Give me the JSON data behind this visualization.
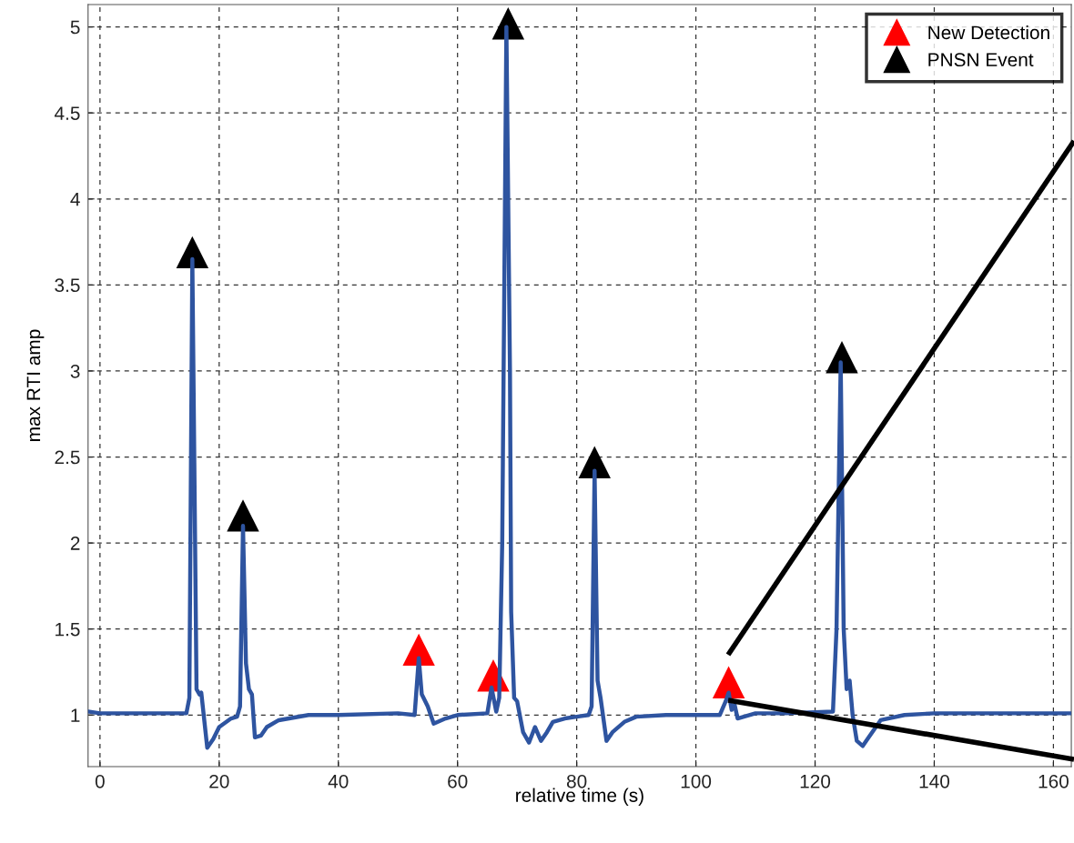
{
  "chart_data": {
    "type": "line",
    "xlabel": "relative time (s)",
    "ylabel": "max RTI amp",
    "xlim": [
      -2,
      163
    ],
    "ylim": [
      0.7,
      5.13
    ],
    "xticks": [
      0,
      20,
      40,
      60,
      80,
      100,
      120,
      140,
      160
    ],
    "yticks": [
      1,
      1.5,
      2,
      2.5,
      3,
      3.5,
      4,
      4.5,
      5
    ],
    "grid": true,
    "legend": "top right",
    "line_style": "solid",
    "series": [
      {
        "color": "#2e54a0",
        "marker": "none",
        "x": [
          -2,
          0,
          5,
          10,
          14.5,
          15,
          15.5,
          16.2,
          16.7,
          17,
          18,
          19,
          20,
          22,
          23,
          23.5,
          24,
          24.5,
          25,
          25.5,
          26,
          27,
          28,
          30,
          35,
          40,
          50,
          52.8,
          53.5,
          54,
          55,
          56,
          58,
          60,
          65,
          65.7,
          66.5,
          67,
          67.5,
          68.2,
          68.8,
          69,
          69.5,
          70,
          71,
          72,
          73,
          74,
          75,
          76,
          78,
          80,
          82,
          82.5,
          83,
          83.5,
          84,
          85,
          86,
          88,
          90,
          95,
          100,
          104,
          105,
          105.5,
          106,
          106.5,
          107,
          110,
          115,
          123,
          123.6,
          124.3,
          124.8,
          125.3,
          125.8,
          126.3,
          127,
          128,
          129,
          131,
          135,
          140,
          150,
          160,
          163
        ],
        "values": [
          1.02,
          1.01,
          1.01,
          1.01,
          1.01,
          1.1,
          3.65,
          1.15,
          1.12,
          1.13,
          0.81,
          0.86,
          0.93,
          0.98,
          0.99,
          1.05,
          2.1,
          1.3,
          1.15,
          1.12,
          0.87,
          0.88,
          0.93,
          0.97,
          1.0,
          1.0,
          1.01,
          1.0,
          1.33,
          1.12,
          1.05,
          0.95,
          0.98,
          1.0,
          1.01,
          1.16,
          1.02,
          1.1,
          2.0,
          5.0,
          3.0,
          1.6,
          1.1,
          1.08,
          0.9,
          0.84,
          0.93,
          0.85,
          0.9,
          0.96,
          0.98,
          0.99,
          1.0,
          1.05,
          2.42,
          1.2,
          1.1,
          0.85,
          0.9,
          0.96,
          0.99,
          1.0,
          1.0,
          1.0,
          1.08,
          1.13,
          1.03,
          1.06,
          0.98,
          1.01,
          1.01,
          1.02,
          1.5,
          3.05,
          1.5,
          1.15,
          1.2,
          1.0,
          0.85,
          0.82,
          0.87,
          0.97,
          1.0,
          1.01,
          1.01,
          1.01,
          1.01
        ]
      },
      {
        "type": "scatter",
        "name": "New Detection",
        "color": "#ff0000",
        "marker": "triangle",
        "x": [
          53.5,
          66,
          105.5
        ],
        "values": [
          1.38,
          1.23,
          1.19
        ]
      },
      {
        "type": "scatter",
        "name": "PNSN Event",
        "color": "#000000",
        "marker": "triangle",
        "x": [
          15.5,
          24,
          68.5,
          83,
          124.5
        ],
        "values": [
          3.69,
          2.16,
          5.02,
          2.47,
          3.08
        ]
      }
    ]
  }
}
